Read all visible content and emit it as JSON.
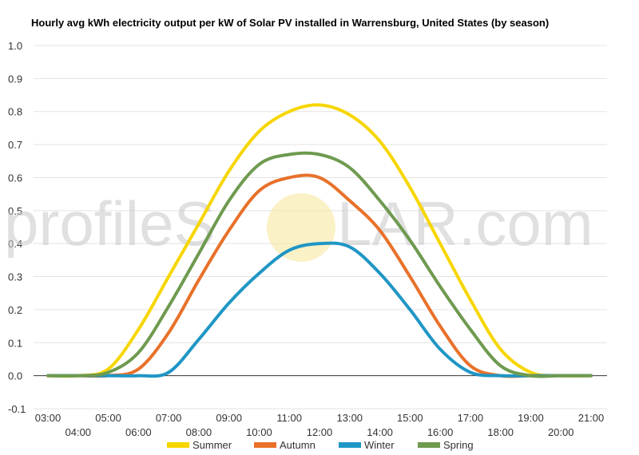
{
  "chart_data": {
    "type": "line",
    "title": "Hourly avg kWh electricity output per kW of Solar PV installed in Warrensburg, United States (by season)",
    "xlabel": "",
    "ylabel": "",
    "ylim": [
      -0.1,
      1.0
    ],
    "y_ticks": [
      "-0.1",
      "0.0",
      "0.1",
      "0.2",
      "0.3",
      "0.4",
      "0.5",
      "0.6",
      "0.7",
      "0.8",
      "0.9",
      "1.0"
    ],
    "y_tick_values": [
      -0.1,
      0.0,
      0.1,
      0.2,
      0.3,
      0.4,
      0.5,
      0.6,
      0.7,
      0.8,
      0.9,
      1.0
    ],
    "x_ticks": [
      "03:00",
      "04:00",
      "05:00",
      "06:00",
      "07:00",
      "08:00",
      "09:00",
      "10:00",
      "11:00",
      "12:00",
      "13:00",
      "14:00",
      "15:00",
      "16:00",
      "17:00",
      "18:00",
      "19:00",
      "20:00",
      "21:00"
    ],
    "x_hours": [
      3,
      4,
      5,
      6,
      7,
      8,
      9,
      10,
      11,
      12,
      13,
      14,
      15,
      16,
      17,
      18,
      19,
      20,
      21
    ],
    "grid": true,
    "legend_position": "bottom",
    "series": [
      {
        "name": "Summer",
        "color": "#f7d600",
        "x": [
          3,
          4,
          5,
          6,
          7,
          8,
          9,
          10,
          11,
          12,
          13,
          14,
          15,
          16,
          17,
          18,
          19,
          20,
          21
        ],
        "values": [
          0.0,
          0.0,
          0.02,
          0.14,
          0.3,
          0.46,
          0.62,
          0.74,
          0.8,
          0.82,
          0.79,
          0.71,
          0.57,
          0.4,
          0.23,
          0.08,
          0.01,
          0.0,
          0.0
        ]
      },
      {
        "name": "Autumn",
        "color": "#e8712a",
        "x": [
          3,
          4,
          5,
          6,
          7,
          8,
          9,
          10,
          11,
          12,
          13,
          14,
          15,
          16,
          17,
          18,
          19,
          20,
          21
        ],
        "values": [
          0.0,
          0.0,
          0.0,
          0.02,
          0.13,
          0.29,
          0.44,
          0.56,
          0.6,
          0.6,
          0.53,
          0.44,
          0.3,
          0.15,
          0.03,
          0.0,
          0.0,
          0.0,
          0.0
        ]
      },
      {
        "name": "Winter",
        "color": "#1f96c5",
        "x": [
          3,
          4,
          5,
          6,
          7,
          8,
          9,
          10,
          11,
          12,
          13,
          14,
          15,
          16,
          17,
          18,
          19,
          20,
          21
        ],
        "values": [
          0.0,
          0.0,
          0.0,
          0.0,
          0.01,
          0.11,
          0.22,
          0.31,
          0.38,
          0.4,
          0.39,
          0.31,
          0.2,
          0.08,
          0.01,
          0.0,
          0.0,
          0.0,
          0.0
        ]
      },
      {
        "name": "Spring",
        "color": "#6e9a4f",
        "x": [
          3,
          4,
          5,
          6,
          7,
          8,
          9,
          10,
          11,
          12,
          13,
          14,
          15,
          16,
          17,
          18,
          19,
          20,
          21
        ],
        "values": [
          0.0,
          0.0,
          0.01,
          0.07,
          0.21,
          0.37,
          0.53,
          0.64,
          0.67,
          0.67,
          0.63,
          0.53,
          0.41,
          0.27,
          0.14,
          0.03,
          0.0,
          0.0,
          0.0
        ]
      }
    ]
  },
  "watermark": {
    "text_left": "profileS",
    "text_right": "LAR.com",
    "sun_color": "#f7e7a0"
  }
}
